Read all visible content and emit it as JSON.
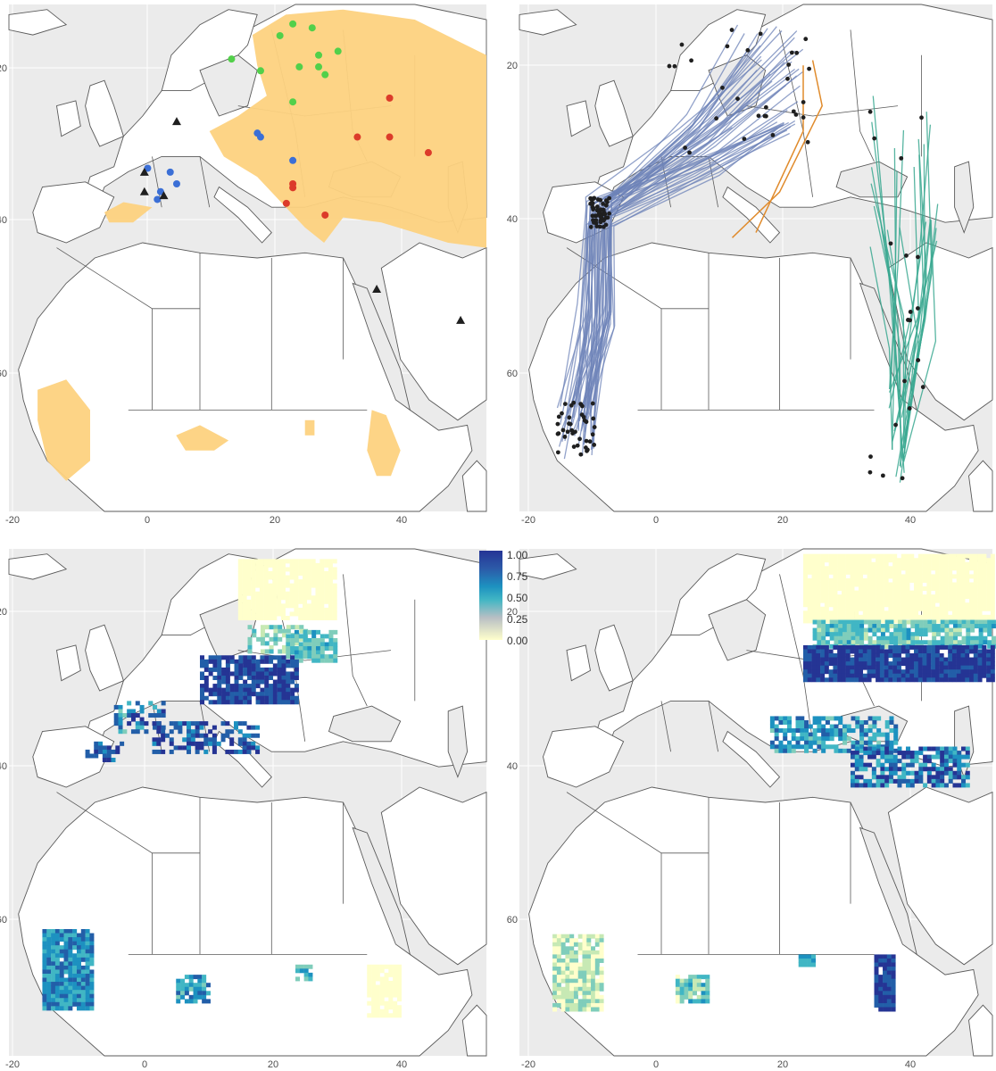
{
  "colors": {
    "ocean": "#ebebeb",
    "land": "#ffffff",
    "border": "#5a5a5a",
    "grid": "#ffffff",
    "range": "#fdd27f",
    "green_point": "#52d04a",
    "blue_point": "#3b6fd6",
    "red_point": "#dc3b2a",
    "triangle": "#1f1f1f",
    "western_tracks": "#6d83b8",
    "central_tracks": "#e08b2c",
    "eastern_tracks": "#3aa891",
    "track_points": "#1f1f1f"
  },
  "axes": {
    "x_ticks": [
      "-20",
      "0",
      "20",
      "40"
    ],
    "y_ticks": [
      "20",
      "40",
      "60"
    ],
    "xlim": [
      -22,
      52
    ],
    "ylim": [
      3,
      68
    ]
  },
  "legend": {
    "ticks": [
      "1.00",
      "0.75",
      "0.50",
      "0.25",
      "0.00"
    ],
    "scale": [
      "#ffffcc",
      "#c7e9b4",
      "#7fcdbb",
      "#41b6c4",
      "#1d91c0",
      "#225ea8",
      "#253494"
    ]
  },
  "panels": [
    {
      "id": "range",
      "name": "panel-breeding-range"
    },
    {
      "id": "tracks",
      "name": "panel-migration-tracks"
    },
    {
      "id": "suitability-west",
      "name": "panel-suitability-west"
    },
    {
      "id": "suitability-east",
      "name": "panel-suitability-east"
    }
  ],
  "map_data": {
    "breeding_points": {
      "green": [
        [
          12.5,
          61
        ],
        [
          17,
          59.5
        ],
        [
          20,
          64
        ],
        [
          22,
          65.5
        ],
        [
          25,
          65
        ],
        [
          29,
          62
        ],
        [
          23,
          60
        ],
        [
          26,
          60
        ],
        [
          27,
          59
        ],
        [
          26,
          61.5
        ],
        [
          22,
          55.5
        ]
      ],
      "blue": [
        [
          22,
          48
        ],
        [
          17,
          51
        ],
        [
          16.5,
          51.5
        ],
        [
          3,
          46.5
        ],
        [
          1.5,
          44
        ],
        [
          1,
          43
        ],
        [
          4,
          45
        ],
        [
          -0.5,
          47
        ]
      ],
      "red": [
        [
          37,
          56
        ],
        [
          37,
          51
        ],
        [
          32,
          51
        ],
        [
          43,
          49
        ],
        [
          22,
          45
        ],
        [
          22,
          44.5
        ],
        [
          21,
          42.5
        ],
        [
          27,
          41
        ]
      ]
    },
    "triangles": [
      [
        4,
        53
      ],
      [
        -1,
        46.5
      ],
      [
        -1,
        44
      ],
      [
        2,
        43.5
      ],
      [
        35,
        31.5
      ],
      [
        48,
        27.5
      ]
    ]
  }
}
